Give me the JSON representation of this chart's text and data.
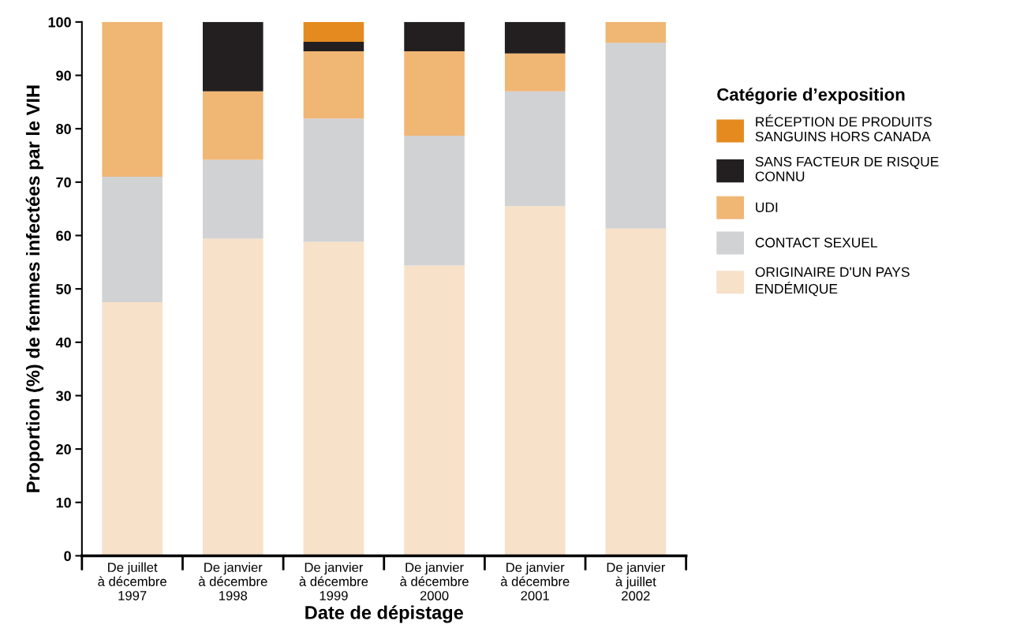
{
  "chart_data": {
    "type": "bar",
    "stacked": true,
    "categories": [
      "De juillet\nà décembre\n1997",
      "De janvier\nà décembre\n1998",
      "De janvier\nà décembre\n1999",
      "De janvier\nà décembre\n2000",
      "De janvier\nà décembre\n2001",
      "De janvier\nà juillet\n2002"
    ],
    "series": [
      {
        "name": "ORIGINAIRE D'UN PAYS\nENDÉMIQUE",
        "color": "#f7e1c8",
        "values": [
          47.5,
          59.4,
          58.8,
          54.4,
          65.5,
          61.3
        ]
      },
      {
        "name": "CONTACT SEXUEL",
        "color": "#d1d2d4",
        "values": [
          23.5,
          14.8,
          23.1,
          24.3,
          21.5,
          34.8
        ]
      },
      {
        "name": "UDI",
        "color": "#f0b674",
        "values": [
          29,
          12.8,
          12.6,
          15.8,
          7.1,
          3.9
        ]
      },
      {
        "name": "SANS FACTEUR DE RISQUE\nCONNU",
        "color": "#231f20",
        "values": [
          null,
          13,
          1.8,
          5.5,
          5.9,
          null
        ]
      },
      {
        "name": "RÉCEPTION DE PRODUITS\nSANGUINS HORS CANADA",
        "color": "#e58a1f",
        "values": [
          null,
          null,
          3.7,
          null,
          null,
          null
        ]
      }
    ],
    "xlabel": "Date de dépistage",
    "ylabel": "Proportion (%) de femmes infectées par le VIH",
    "legend_title": "Catégorie d’exposition",
    "legend": "right",
    "ylim": [
      0,
      100
    ],
    "yticks": [
      0,
      10,
      20,
      30,
      40,
      50,
      60,
      70,
      80,
      90,
      100
    ],
    "grid": false
  }
}
